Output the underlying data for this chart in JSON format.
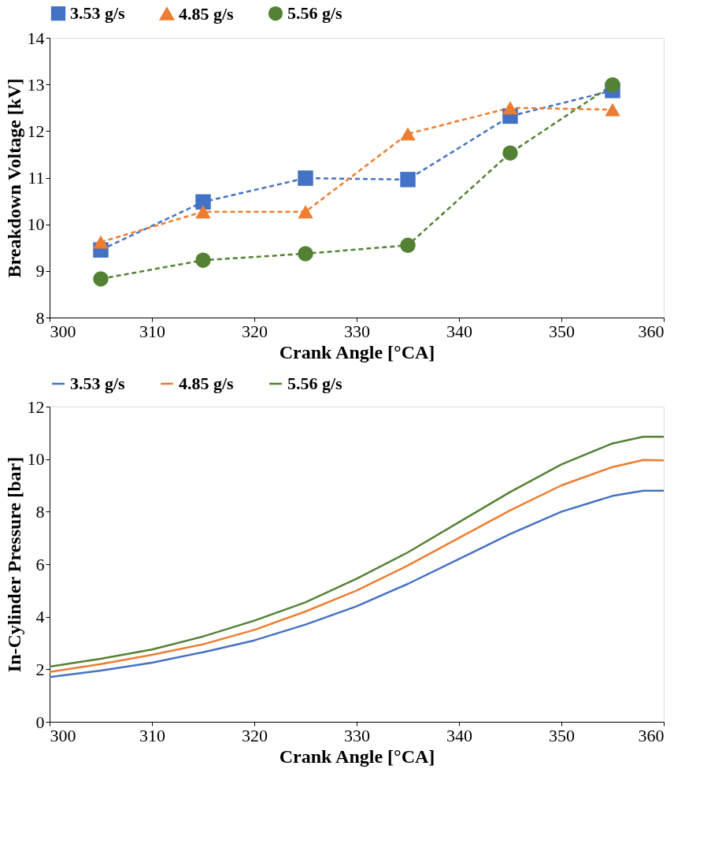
{
  "chart_data": [
    {
      "type": "line",
      "xlabel": "Crank Angle [°CA]",
      "ylabel": "Breakdown Voltage [kV]",
      "x": [
        305,
        315,
        325,
        335,
        345,
        355
      ],
      "xlim": [
        300,
        360
      ],
      "xticks": [
        300,
        310,
        320,
        330,
        340,
        350,
        360
      ],
      "ylim": [
        8,
        14
      ],
      "yticks": [
        8,
        9,
        10,
        11,
        12,
        13,
        14
      ],
      "grid": false,
      "legend": "top",
      "line_style": "dashed",
      "series": [
        {
          "name": "3.53 g/s",
          "color": "#4472c4",
          "marker": "square",
          "values": [
            9.45,
            10.48,
            10.99,
            10.96,
            12.32,
            12.87
          ]
        },
        {
          "name": "4.85 g/s",
          "color": "#ed7d31",
          "marker": "triangle",
          "values": [
            9.62,
            10.27,
            10.27,
            11.94,
            12.5,
            12.46
          ]
        },
        {
          "name": "5.56 g/s",
          "color": "#548235",
          "marker": "circle",
          "values": [
            8.83,
            9.23,
            9.37,
            9.55,
            11.53,
            12.99
          ]
        }
      ]
    },
    {
      "type": "line",
      "xlabel": "Crank Angle [°CA]",
      "ylabel": "In-Cylinder Pressure [bar]",
      "x": [
        300,
        305,
        310,
        315,
        320,
        325,
        330,
        335,
        340,
        345,
        350,
        355,
        358,
        360
      ],
      "xlim": [
        300,
        360
      ],
      "xticks": [
        300,
        310,
        320,
        330,
        340,
        350,
        360
      ],
      "ylim": [
        0,
        12
      ],
      "yticks": [
        0,
        2,
        4,
        6,
        8,
        10,
        12
      ],
      "grid": false,
      "legend": "top",
      "line_style": "solid",
      "marker": "none",
      "series": [
        {
          "name": "3.53 g/s",
          "color": "#4472c4",
          "values": [
            1.7,
            1.95,
            2.25,
            2.65,
            3.1,
            3.7,
            4.4,
            5.25,
            6.2,
            7.15,
            8.0,
            8.6,
            8.8,
            8.8
          ]
        },
        {
          "name": "4.85 g/s",
          "color": "#ed7d31",
          "values": [
            1.9,
            2.2,
            2.55,
            2.95,
            3.5,
            4.2,
            5.0,
            5.95,
            7.0,
            8.05,
            9.0,
            9.7,
            9.97,
            9.95
          ]
        },
        {
          "name": "5.56 g/s",
          "color": "#548235",
          "values": [
            2.1,
            2.4,
            2.75,
            3.25,
            3.85,
            4.55,
            5.45,
            6.45,
            7.6,
            8.75,
            9.8,
            10.6,
            10.85,
            10.85
          ]
        }
      ]
    }
  ]
}
